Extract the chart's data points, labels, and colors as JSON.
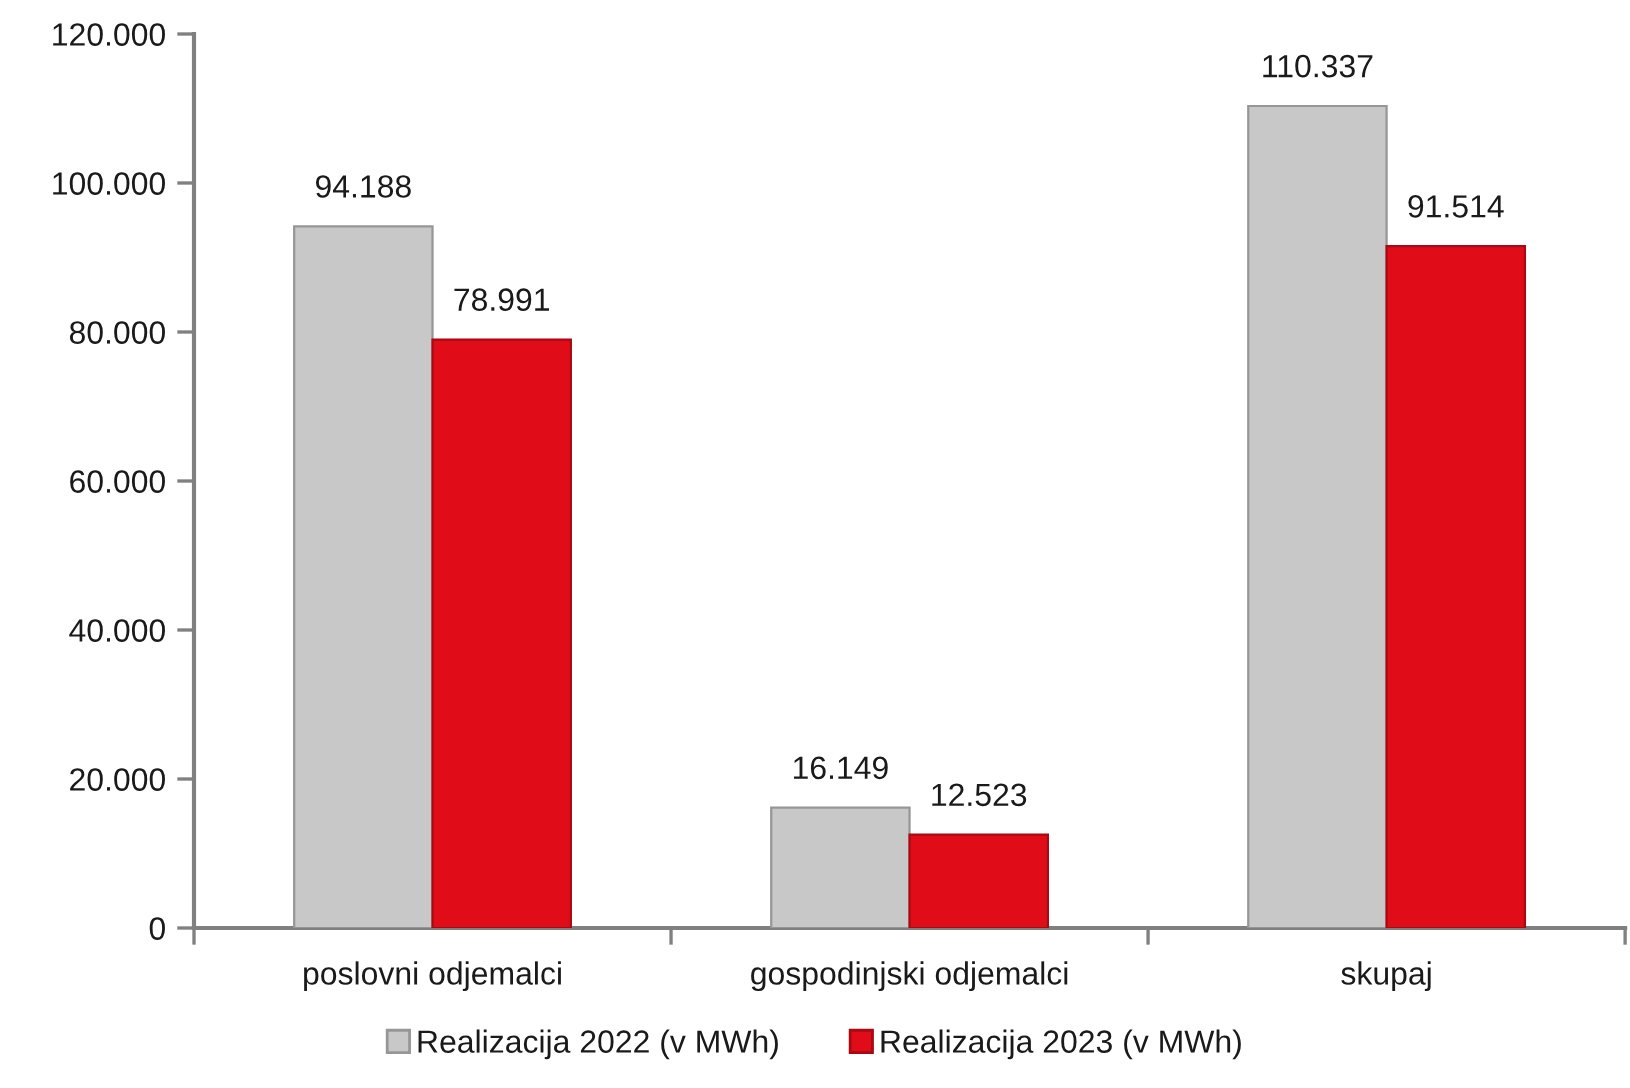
{
  "chart_data": {
    "type": "bar",
    "categories": [
      "poslovni odjemalci",
      "gospodinjski odjemalci",
      "skupaj"
    ],
    "series": [
      {
        "name": "Realizacija 2022 (v MWh)",
        "color": "#c8c8c8",
        "values": [
          94188,
          16149,
          110337
        ],
        "value_labels": [
          "94.188",
          "16.149",
          "110.337"
        ]
      },
      {
        "name": "Realizacija 2023 (v MWh)",
        "color": "#e00d18",
        "values": [
          78991,
          12523,
          91514
        ],
        "value_labels": [
          "78.991",
          "12.523",
          "91.514"
        ]
      }
    ],
    "ylim": [
      0,
      120000
    ],
    "yticks": [
      0,
      {
        "value": 20000,
        "label": "20.000"
      },
      {
        "value": 40000,
        "label": "40.000"
      },
      {
        "value": 60000,
        "label": "60.000"
      },
      {
        "value": 80000,
        "label": "80.000"
      },
      {
        "value": 100000,
        "label": "100.000"
      },
      {
        "value": 120000,
        "label": "120.000"
      }
    ],
    "grid": false,
    "legend": "bottom"
  }
}
